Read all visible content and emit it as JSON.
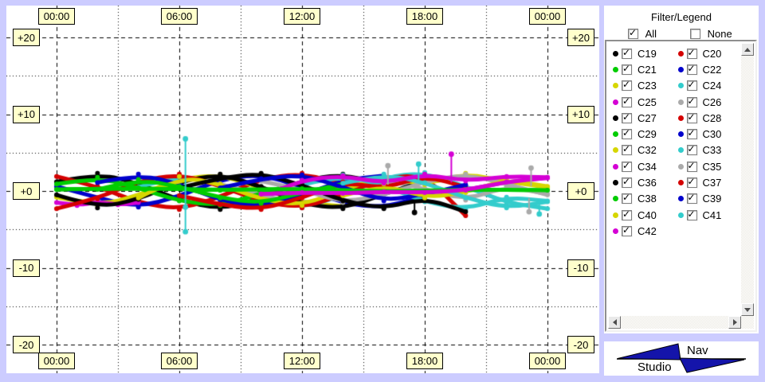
{
  "legend": {
    "title": "Filter/Legend",
    "all_label": "All",
    "none_label": "None",
    "all_checked": true,
    "none_checked": false
  },
  "logo": {
    "line1": "Nav",
    "line2": "Studio",
    "triangle_color": "#1414aa"
  },
  "colors": {
    "window_background": "#ccccff",
    "panel_background": "#ffffff",
    "axis_label_bg": "#ffffcc",
    "axis_label_border": "#000000",
    "grid_color": "#000000"
  },
  "chart_data": {
    "type": "line",
    "title": "",
    "x_axis": {
      "unit": "time-of-day",
      "tick_labels": [
        "00:00",
        "06:00",
        "12:00",
        "18:00",
        "00:00"
      ],
      "tick_hours": [
        0,
        6,
        12,
        18,
        24
      ],
      "minor_hours": [
        3,
        9,
        15,
        21
      ],
      "range_hours": [
        0,
        24
      ]
    },
    "y_axis": {
      "tick_labels": [
        "+20",
        "+10",
        "+0",
        "-10",
        "-20"
      ],
      "tick_values": [
        20,
        10,
        0,
        -10,
        -20
      ],
      "minor_values": [
        15,
        5,
        -5,
        -15
      ],
      "range": [
        -24,
        24
      ]
    },
    "grid": {
      "major_style": "dashed",
      "minor_style": "dotted",
      "grid_on": true
    },
    "legend_position": "right-panel",
    "series": [
      {
        "name": "C19",
        "color": "#000000",
        "checked": true,
        "points": [
          [
            0,
            1.2
          ],
          [
            2,
            2.3
          ],
          [
            4,
            1.0
          ],
          [
            6,
            -1.2
          ],
          [
            8,
            -2.4
          ],
          [
            10,
            -1.0
          ],
          [
            12,
            1.4
          ],
          [
            14,
            2.2
          ],
          [
            16,
            0.8
          ]
        ]
      },
      {
        "name": "C20",
        "color": "#d40000",
        "checked": true,
        "points": [
          [
            0,
            1.9
          ],
          [
            2,
            0.6
          ],
          [
            4,
            -1.5
          ],
          [
            6,
            -2.4
          ],
          [
            8,
            -0.8
          ],
          [
            10,
            1.6
          ],
          [
            12,
            2.3
          ],
          [
            14,
            0.9
          ],
          [
            16,
            -0.9
          ]
        ]
      },
      {
        "name": "C21",
        "color": "#00cc00",
        "checked": true,
        "points": [
          [
            0,
            0.2
          ],
          [
            4,
            0.4
          ],
          [
            8,
            0.1
          ],
          [
            12,
            0.3
          ],
          [
            16,
            -0.1
          ],
          [
            20,
            0.2
          ],
          [
            24,
            0.1
          ]
        ]
      },
      {
        "name": "C22",
        "color": "#0000cc",
        "checked": true,
        "points": [
          [
            0,
            0.6
          ],
          [
            2,
            -0.9
          ],
          [
            4,
            -2.1
          ],
          [
            6,
            -0.7
          ],
          [
            8,
            1.5
          ],
          [
            10,
            2.2
          ],
          [
            12,
            0.5
          ],
          [
            14,
            -1.6
          ],
          [
            16,
            -2.2
          ],
          [
            18,
            -0.6
          ]
        ]
      },
      {
        "name": "C23",
        "color": "#d6d600",
        "checked": true,
        "points": [
          [
            0,
            -0.8
          ],
          [
            2,
            -1.9
          ],
          [
            4,
            -0.6
          ],
          [
            6,
            1.6
          ],
          [
            8,
            2.1
          ],
          [
            10,
            0.4
          ],
          [
            12,
            -1.5
          ],
          [
            14,
            -2.0
          ]
        ]
      },
      {
        "name": "C24",
        "color": "#33cccc",
        "checked": true,
        "points": [
          [
            4,
            0.5
          ],
          [
            6,
            2.0
          ],
          [
            8,
            0.8
          ],
          [
            10,
            -1.2
          ],
          [
            12,
            -2.2
          ],
          [
            14,
            -0.6
          ],
          [
            16,
            1.8
          ],
          [
            18,
            2.4
          ],
          [
            20,
            0.6
          ],
          [
            22,
            -1.5
          ],
          [
            24,
            -2.3
          ]
        ]
      },
      {
        "name": "C25",
        "color": "#d400d4",
        "checked": true,
        "points": [
          [
            0,
            -1.5
          ],
          [
            1,
            -1.9
          ],
          [
            2,
            -1.4
          ],
          [
            3,
            -1.8
          ],
          [
            4,
            -1.5
          ]
        ]
      },
      {
        "name": "C26",
        "color": "#aaaaaa",
        "checked": true,
        "points": [
          [
            8,
            0.9
          ],
          [
            10,
            -0.5
          ],
          [
            12,
            -1.8
          ],
          [
            14,
            -0.4
          ],
          [
            16,
            1.5
          ],
          [
            18,
            0.3
          ],
          [
            20,
            -1.2
          ],
          [
            22,
            0.6
          ],
          [
            24,
            -0.4
          ]
        ]
      },
      {
        "name": "C27",
        "color": "#000000",
        "checked": true,
        "points": [
          [
            0,
            -0.5
          ],
          [
            2,
            -2.2
          ],
          [
            4,
            -1.1
          ],
          [
            6,
            1.2
          ],
          [
            8,
            2.2
          ],
          [
            10,
            0.6
          ],
          [
            12,
            -1.7
          ],
          [
            14,
            -2.3
          ],
          [
            16,
            -0.4
          ],
          [
            18,
            1.3
          ]
        ]
      },
      {
        "name": "C28",
        "color": "#d40000",
        "checked": true,
        "points": [
          [
            0,
            -2.3
          ],
          [
            2,
            -1.0
          ],
          [
            4,
            1.3
          ],
          [
            6,
            2.2
          ],
          [
            8,
            0.7
          ],
          [
            10,
            -1.4
          ],
          [
            12,
            -2.2
          ],
          [
            14,
            -0.5
          ],
          [
            16,
            1.7
          ],
          [
            18,
            2.1
          ],
          [
            20,
            -3.2
          ]
        ]
      },
      {
        "name": "C29",
        "color": "#00cc00",
        "checked": true,
        "points": [
          [
            0,
            0.9
          ],
          [
            2,
            1.8
          ],
          [
            4,
            0.4
          ],
          [
            6,
            -1.3
          ],
          [
            8,
            -1.9
          ],
          [
            10,
            -0.3
          ],
          [
            12,
            1.2
          ]
        ]
      },
      {
        "name": "C30",
        "color": "#0000cc",
        "checked": true,
        "points": [
          [
            2,
            1.1
          ],
          [
            4,
            2.2
          ],
          [
            6,
            0.9
          ],
          [
            8,
            -1.2
          ],
          [
            10,
            -2.1
          ],
          [
            12,
            -0.6
          ],
          [
            14,
            1.4
          ],
          [
            16,
            2.0
          ]
        ]
      },
      {
        "name": "C32",
        "color": "#d6d600",
        "checked": true,
        "points": [
          [
            4,
            -0.9
          ],
          [
            6,
            1.9
          ],
          [
            8,
            0.9
          ],
          [
            10,
            -1.1
          ],
          [
            12,
            -1.9
          ],
          [
            14,
            0.2
          ],
          [
            16,
            1.8
          ],
          [
            18,
            0.8
          ],
          [
            20,
            2.3
          ],
          [
            22,
            1.2
          ],
          [
            24,
            0.5
          ]
        ]
      },
      {
        "name": "C33",
        "color": "#33cccc",
        "checked": true,
        "points": [
          [
            12,
            0.8
          ],
          [
            14,
            2.1
          ],
          [
            16,
            0.7
          ],
          [
            18,
            -1.4
          ],
          [
            20,
            -2.4
          ],
          [
            22,
            -0.8
          ],
          [
            24,
            -1.3
          ]
        ]
      },
      {
        "name": "C34",
        "color": "#d400d4",
        "checked": true,
        "points": [
          [
            10,
            -0.4
          ],
          [
            12,
            -0.2
          ],
          [
            14,
            -0.3
          ],
          [
            16,
            -0.1
          ],
          [
            18,
            -0.2
          ],
          [
            20,
            0.1
          ],
          [
            22,
            1.2
          ],
          [
            24,
            1.7
          ]
        ]
      },
      {
        "name": "C35",
        "color": "#aaaaaa",
        "checked": true,
        "points": [
          [
            10,
            1.3
          ],
          [
            12,
            0.2
          ],
          [
            14,
            -1.5
          ],
          [
            16,
            -0.5
          ],
          [
            18,
            1.2
          ],
          [
            20,
            2.2
          ],
          [
            22,
            0.9
          ],
          [
            24,
            -0.5
          ]
        ]
      },
      {
        "name": "C36",
        "color": "#000000",
        "checked": true,
        "points": [
          [
            6,
            0.4
          ],
          [
            8,
            1.7
          ],
          [
            10,
            2.3
          ],
          [
            12,
            0.8
          ],
          [
            14,
            -1.3
          ],
          [
            16,
            -2.3
          ],
          [
            18,
            -0.9
          ],
          [
            20,
            -2.7
          ]
        ]
      },
      {
        "name": "C37",
        "color": "#d40000",
        "checked": true,
        "points": [
          [
            6,
            -0.6
          ],
          [
            8,
            -1.8
          ],
          [
            10,
            -2.4
          ],
          [
            12,
            -0.9
          ],
          [
            14,
            1.2
          ],
          [
            16,
            0.3
          ],
          [
            18,
            2.0
          ],
          [
            20,
            0.5
          ]
        ]
      },
      {
        "name": "C38",
        "color": "#00cc00",
        "checked": true,
        "points": [
          [
            2,
            0.2
          ],
          [
            4,
            1.5
          ],
          [
            6,
            0.6
          ],
          [
            8,
            -0.9
          ],
          [
            10,
            -1.6
          ],
          [
            12,
            -0.2
          ],
          [
            14,
            0.9
          ]
        ]
      },
      {
        "name": "C39",
        "color": "#0000cc",
        "checked": true,
        "points": [
          [
            8,
            0.4
          ],
          [
            10,
            1.6
          ],
          [
            12,
            2.1
          ],
          [
            14,
            0.5
          ],
          [
            16,
            -1.3
          ],
          [
            18,
            -0.4
          ],
          [
            20,
            0.8
          ]
        ]
      },
      {
        "name": "C40",
        "color": "#d6d600",
        "checked": true,
        "points": [
          [
            14,
            -0.6
          ],
          [
            16,
            0.9
          ],
          [
            18,
            -0.9
          ],
          [
            20,
            -0.2
          ],
          [
            22,
            1.5
          ],
          [
            24,
            0.6
          ]
        ]
      },
      {
        "name": "C41",
        "color": "#33cccc",
        "checked": true,
        "points": [
          [
            14,
            1.0
          ],
          [
            16,
            2.2
          ],
          [
            18,
            1.1
          ],
          [
            20,
            -0.9
          ],
          [
            22,
            -2.2
          ],
          [
            24,
            -1.4
          ]
        ]
      },
      {
        "name": "C42",
        "color": "#d400d4",
        "checked": true,
        "points": [
          [
            11,
            0.3
          ],
          [
            12,
            1.4
          ],
          [
            14,
            2.0
          ],
          [
            16,
            1.0
          ],
          [
            18,
            2.2
          ],
          [
            20,
            1.3
          ],
          [
            22,
            1.9
          ],
          [
            24,
            1.8
          ]
        ]
      }
    ],
    "spikes": [
      {
        "color": "#33cccc",
        "hour": 6.3,
        "from": 6.8,
        "to": -5.3,
        "dots": [
          6.8,
          -2.1,
          -5.3
        ]
      },
      {
        "color": "#d400d4",
        "hour": 19.3,
        "from": 4.8,
        "to": 1.2,
        "dots": [
          4.8
        ]
      },
      {
        "color": "#aaaaaa",
        "hour": 16.2,
        "from": 3.3,
        "to": 0.9,
        "dots": [
          3.3
        ]
      },
      {
        "color": "#33cccc",
        "hour": 17.7,
        "from": 3.5,
        "to": 1.4,
        "dots": [
          3.5
        ]
      },
      {
        "color": "#aaaaaa",
        "hour": 23.2,
        "from": 3.0,
        "to": 0.7,
        "dots": [
          3.0
        ]
      },
      {
        "color": "#aaaaaa",
        "hour": 23.1,
        "from": -1.0,
        "to": -2.7,
        "dots": [
          -2.7
        ]
      },
      {
        "color": "#33cccc",
        "hour": 23.6,
        "from": -1.2,
        "to": -3.0,
        "dots": [
          -3.0
        ]
      },
      {
        "color": "#000000",
        "hour": 17.5,
        "from": -1.3,
        "to": -2.8,
        "dots": [
          -2.8
        ]
      }
    ]
  }
}
